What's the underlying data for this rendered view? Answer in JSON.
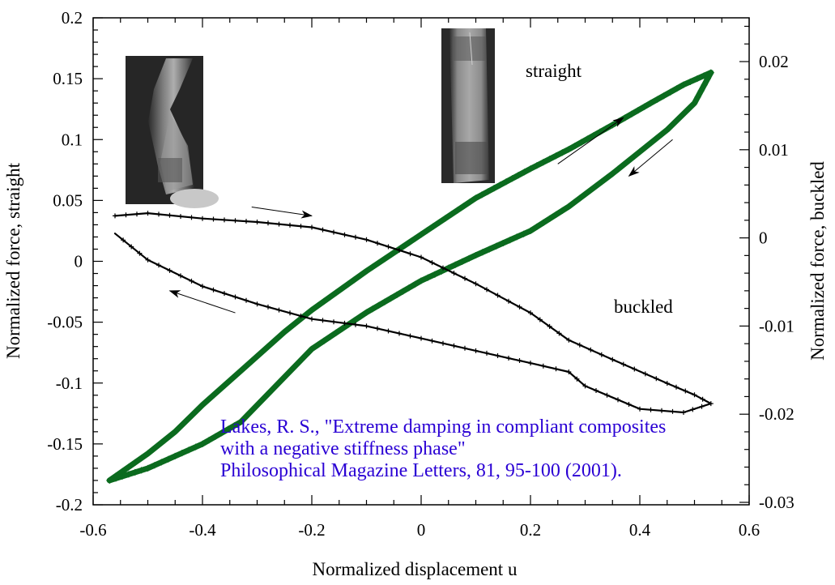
{
  "chart_data": {
    "type": "scatter",
    "title": "",
    "xlabel": "Normalized displacement u",
    "ylabel_left": "Normalized force, straight",
    "ylabel_right": "Normalized force, buckled",
    "xlim": [
      -0.6,
      0.6
    ],
    "ylim_left": [
      -0.2,
      0.2
    ],
    "ylim_right": [
      -0.03,
      0.025
    ],
    "x_ticks": [
      "-0.6",
      "-0.4",
      "-0.2",
      "0",
      "0.2",
      "0.4",
      "0.6"
    ],
    "x_tick_values": [
      -0.6,
      -0.4,
      -0.2,
      0,
      0.2,
      0.4,
      0.6
    ],
    "y_left_ticks": [
      "0.2",
      "0.15",
      "0.1",
      "0.05",
      "0",
      "-0.05",
      "-0.1",
      "-0.15",
      "-0.2"
    ],
    "y_left_tick_values": [
      0.2,
      0.15,
      0.1,
      0.05,
      0,
      -0.05,
      -0.1,
      -0.15,
      -0.2
    ],
    "y_right_ticks": [
      "0.02",
      "0.01",
      "0",
      "-0.01",
      "-0.02",
      "-0.03"
    ],
    "y_right_tick_values": [
      0.02,
      0.01,
      0,
      -0.01,
      -0.02,
      -0.03
    ],
    "grid": false,
    "series": [
      {
        "name": "straight",
        "axis": "left",
        "marker": "+",
        "color": "#0b6b1e",
        "branches": [
          {
            "direction": "loading",
            "x": [
              -0.57,
              -0.5,
              -0.45,
              -0.4,
              -0.33,
              -0.25,
              -0.2,
              -0.1,
              0.0,
              0.1,
              0.2,
              0.27,
              0.35,
              0.42,
              0.48,
              0.53
            ],
            "y": [
              -0.18,
              -0.158,
              -0.14,
              -0.118,
              -0.09,
              -0.058,
              -0.04,
              -0.008,
              0.022,
              0.052,
              0.076,
              0.092,
              0.112,
              0.13,
              0.145,
              0.155
            ]
          },
          {
            "direction": "unloading",
            "x": [
              0.53,
              0.5,
              0.45,
              0.4,
              0.35,
              0.27,
              0.2,
              0.1,
              0.0,
              -0.1,
              -0.2,
              -0.33,
              -0.4,
              -0.45,
              -0.5,
              -0.57
            ],
            "y": [
              0.155,
              0.13,
              0.108,
              0.09,
              0.072,
              0.045,
              0.025,
              0.005,
              -0.016,
              -0.042,
              -0.072,
              -0.132,
              -0.15,
              -0.16,
              -0.17,
              -0.18
            ]
          }
        ]
      },
      {
        "name": "buckled",
        "axis": "right",
        "marker": "+",
        "color": "#000000",
        "branches": [
          {
            "direction": "loading",
            "x": [
              -0.56,
              -0.5,
              -0.4,
              -0.3,
              -0.2,
              -0.1,
              0.0,
              0.1,
              0.2,
              0.27,
              0.35,
              0.45,
              0.5,
              0.53
            ],
            "y": [
              0.0025,
              0.0028,
              0.0022,
              0.0018,
              0.0012,
              -0.0002,
              -0.0022,
              -0.0052,
              -0.0085,
              -0.0116,
              -0.0138,
              -0.0165,
              -0.0178,
              -0.0188
            ]
          },
          {
            "direction": "unloading",
            "x": [
              0.53,
              0.48,
              0.4,
              0.3,
              0.27,
              0.2,
              0.1,
              0.0,
              -0.1,
              -0.2,
              -0.3,
              -0.4,
              -0.5,
              -0.56
            ],
            "y": [
              -0.0188,
              -0.0198,
              -0.0194,
              -0.0168,
              -0.0152,
              -0.0142,
              -0.0128,
              -0.0114,
              -0.01,
              -0.0092,
              -0.0075,
              -0.0055,
              -0.0025,
              0.0005
            ]
          }
        ]
      }
    ],
    "annotations": [
      {
        "text": "straight",
        "near": [
          0.25,
          0.17
        ],
        "axis": "left"
      },
      {
        "text": "buckled",
        "near": [
          0.42,
          -0.01
        ],
        "axis": "right"
      }
    ],
    "arrows": [
      {
        "name": "straight-loading-arrow",
        "from": [
          0.25,
          0.08
        ],
        "to": [
          0.37,
          0.118
        ],
        "axis": "left"
      },
      {
        "name": "straight-unloading-arrow",
        "from": [
          0.46,
          0.1
        ],
        "to": [
          0.38,
          0.07
        ],
        "axis": "left"
      },
      {
        "name": "buckled-loading-arrow",
        "from": [
          -0.31,
          0.0035
        ],
        "to": [
          -0.2,
          0.0025
        ],
        "axis": "right"
      },
      {
        "name": "buckled-unloading-arrow",
        "from": [
          -0.34,
          -0.0085
        ],
        "to": [
          -0.46,
          -0.006
        ],
        "axis": "right"
      }
    ],
    "citation": [
      "Lakes, R. S., \"Extreme damping in compliant composites",
      "with a negative stiffness phase\"",
      "Philosophical Magazine Letters, 81, 95-100 (2001)."
    ],
    "citation_color": "#2a00d4",
    "photos": [
      {
        "name": "buckled-specimen-photo",
        "description": "grayscale photo of buckled tube specimen"
      },
      {
        "name": "straight-specimen-photo",
        "description": "grayscale photo of straight tube specimen"
      }
    ]
  }
}
